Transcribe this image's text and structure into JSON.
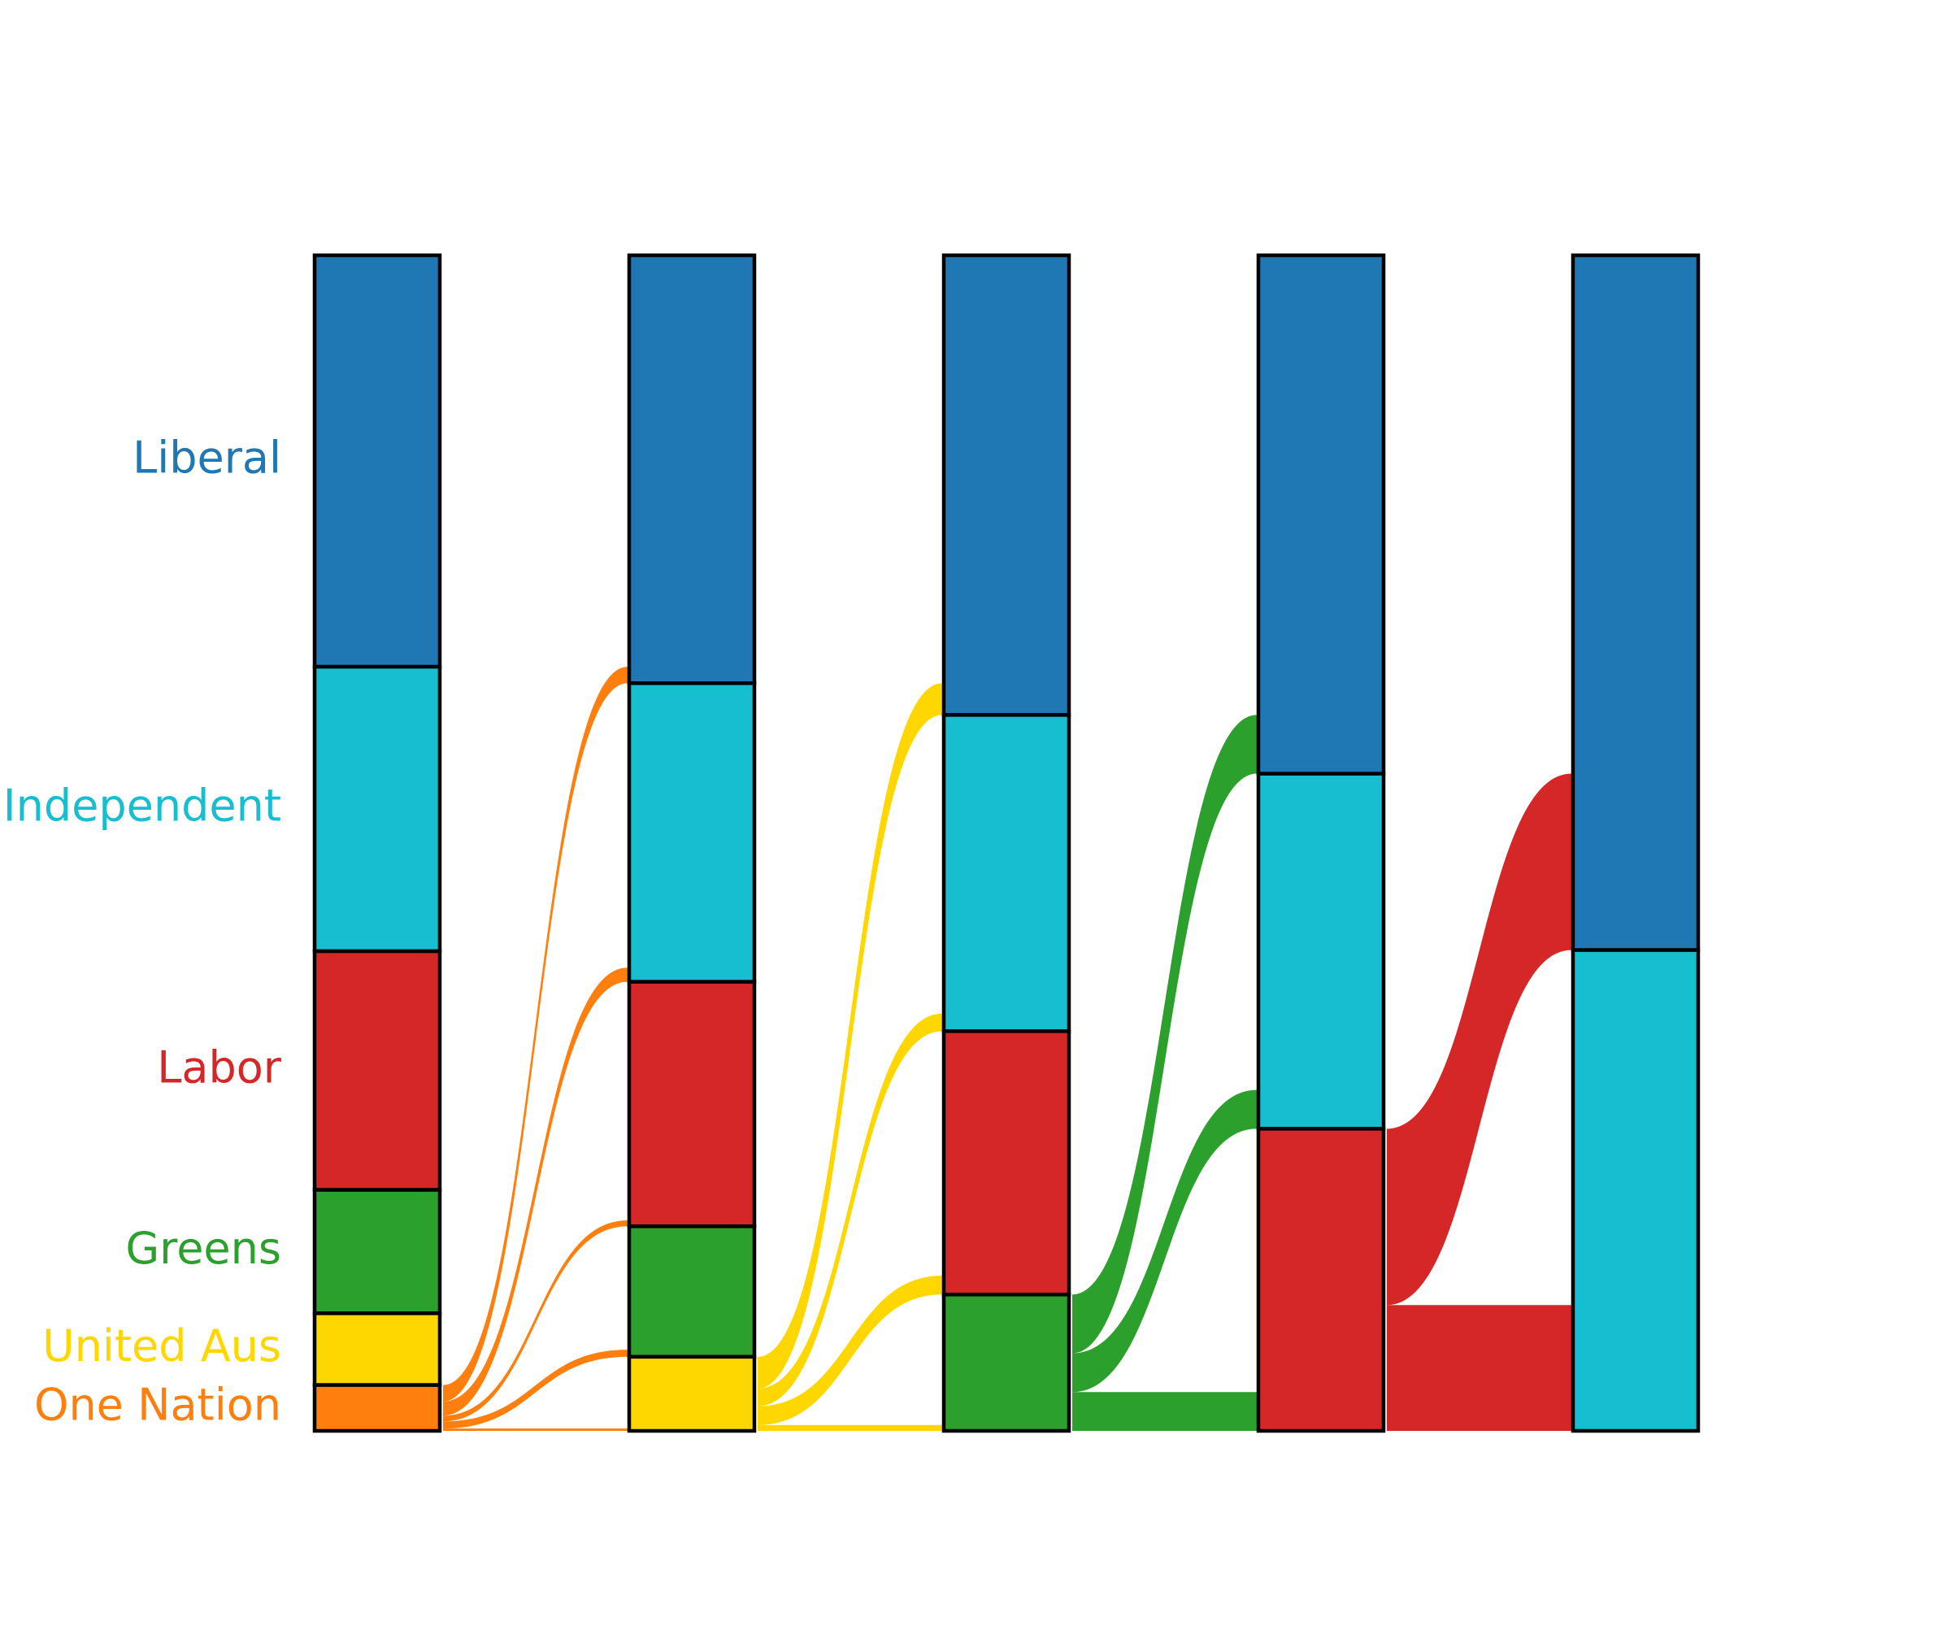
{
  "chart_data": {
    "type": "sankey",
    "title": "",
    "parties": [
      {
        "name": "Liberal",
        "color": "#1f77b4"
      },
      {
        "name": "Independent",
        "color": "#17becf"
      },
      {
        "name": "Labor",
        "color": "#d62728"
      },
      {
        "name": "Greens",
        "color": "#2ca02c"
      },
      {
        "name": "United Aus",
        "color": "#ffd700"
      },
      {
        "name": "One Nation",
        "color": "#ff7f0e"
      }
    ],
    "rounds": [
      {
        "Liberal": 35.0,
        "Independent": 24.2,
        "Labor": 20.3,
        "Greens": 10.5,
        "United Aus": 6.1,
        "One Nation": 3.9
      },
      {
        "Liberal": 36.4,
        "Independent": 25.4,
        "Labor": 20.8,
        "Greens": 11.1,
        "United Aus": 6.3
      },
      {
        "Liberal": 39.1,
        "Independent": 26.9,
        "Labor": 22.4,
        "Greens": 11.6
      },
      {
        "Liberal": 44.1,
        "Independent": 30.2,
        "Labor": 25.7
      },
      {
        "Liberal": 59.1,
        "Independent": 40.9
      }
    ],
    "flows": [
      {
        "from_round": 0,
        "party": "One Nation",
        "to": {
          "Liberal": 1.4,
          "Independent": 1.2,
          "Labor": 0.5,
          "Greens": 0.6,
          "United Aus": 0.2
        }
      },
      {
        "from_round": 1,
        "party": "United Aus",
        "to": {
          "Liberal": 2.7,
          "Independent": 1.5,
          "Labor": 1.6,
          "Greens": 0.5
        }
      },
      {
        "from_round": 2,
        "party": "Greens",
        "to": {
          "Liberal": 5.0,
          "Independent": 3.3,
          "Labor": 3.3
        }
      },
      {
        "from_round": 3,
        "party": "Labor",
        "to": {
          "Liberal": 15.0,
          "Independent": 10.7
        }
      }
    ]
  }
}
